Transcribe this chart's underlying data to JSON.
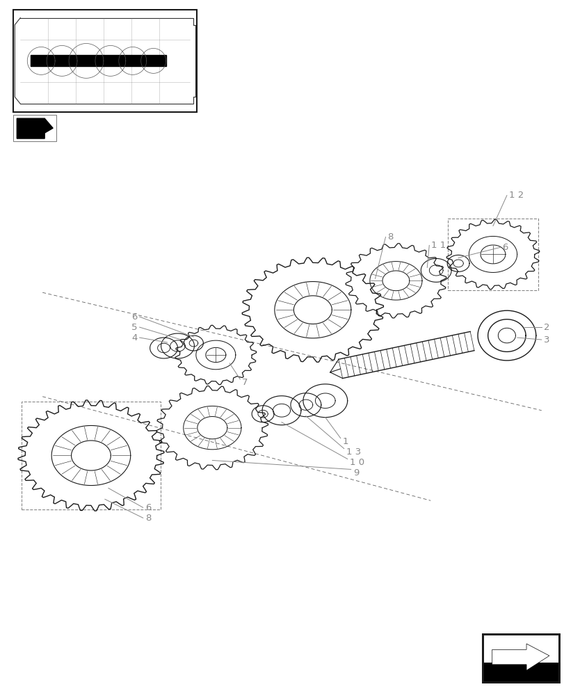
{
  "bg_color": "#ffffff",
  "line_color": "#1a1a1a",
  "label_color": "#888888",
  "fig_width": 8.12,
  "fig_height": 10.0,
  "dpi": 100
}
